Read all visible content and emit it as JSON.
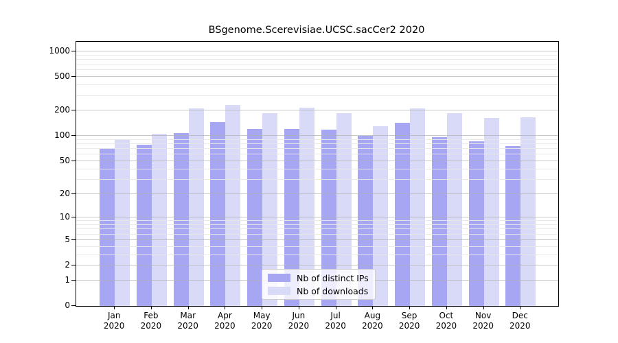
{
  "chart_data": {
    "type": "bar",
    "title": "BSgenome.Scerevisiae.UCSC.sacCer2 2020",
    "categories": [
      "Jan",
      "Feb",
      "Mar",
      "Apr",
      "May",
      "Jun",
      "Jul",
      "Aug",
      "Sep",
      "Oct",
      "Nov",
      "Dec"
    ],
    "x_tick_year": "2020",
    "series": [
      {
        "name": "Nb of distinct IPs",
        "color": "#a6a6f2",
        "values": [
          71,
          78,
          108,
          146,
          121,
          122,
          118,
          100,
          144,
          97,
          87,
          76
        ]
      },
      {
        "name": "Nb of downloads",
        "color": "#d9d9f8",
        "values": [
          92,
          106,
          211,
          235,
          186,
          218,
          186,
          130,
          213,
          185,
          164,
          166
        ]
      }
    ],
    "y_axis": {
      "scale": "log1p",
      "tick_values": [
        0,
        1,
        2,
        5,
        10,
        20,
        50,
        100,
        200,
        500,
        1000
      ],
      "minor_grid_values": [
        3,
        4,
        6,
        7,
        8,
        9,
        30,
        40,
        60,
        70,
        80,
        90,
        300,
        400,
        600,
        700,
        800,
        900
      ],
      "ylim": [
        0,
        1300
      ]
    },
    "grid": "horizontal, drawn over bars",
    "legend": {
      "position": "inside bottom-center",
      "entries": [
        "Nb of distinct IPs",
        "Nb of downloads"
      ]
    },
    "colors": {
      "frame": "#000000",
      "major_grid": "#c7c7c7",
      "minor_grid": "#ebebeb",
      "background": "#ffffff"
    }
  }
}
